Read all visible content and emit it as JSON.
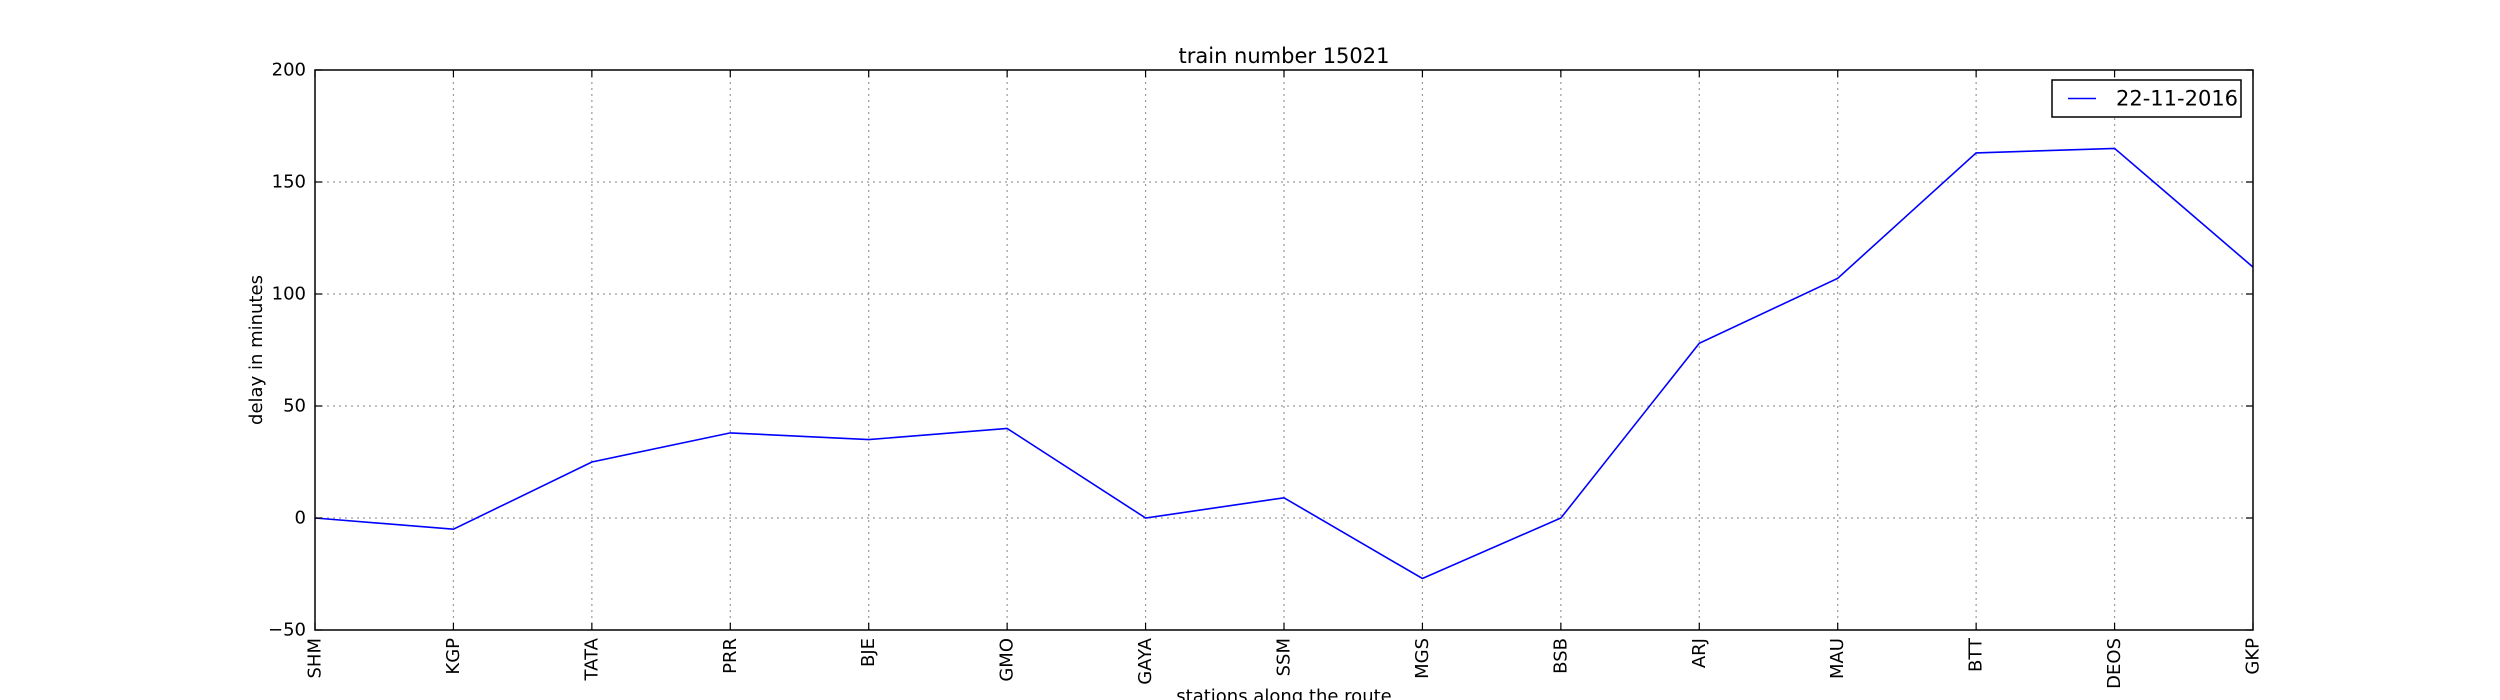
{
  "chart_data": {
    "type": "line",
    "title": "train number 15021",
    "xlabel": "stations along the route",
    "ylabel": "delay in minutes",
    "categories": [
      "SHM",
      "KGP",
      "TATA",
      "PRR",
      "BJE",
      "GMO",
      "GAYA",
      "SSM",
      "MGS",
      "BSB",
      "ARJ",
      "MAU",
      "BTT",
      "DEOS",
      "GKP"
    ],
    "series": [
      {
        "name": "22-11-2016",
        "color": "#0000ff",
        "values": [
          0,
          -5,
          25,
          38,
          35,
          40,
          0,
          9,
          -27,
          0,
          78,
          107,
          163,
          165,
          112
        ]
      }
    ],
    "ylim": [
      -50,
      200
    ],
    "yticks": [
      -50,
      0,
      50,
      100,
      150,
      200
    ],
    "grid": true,
    "legend_position": "top-right"
  }
}
